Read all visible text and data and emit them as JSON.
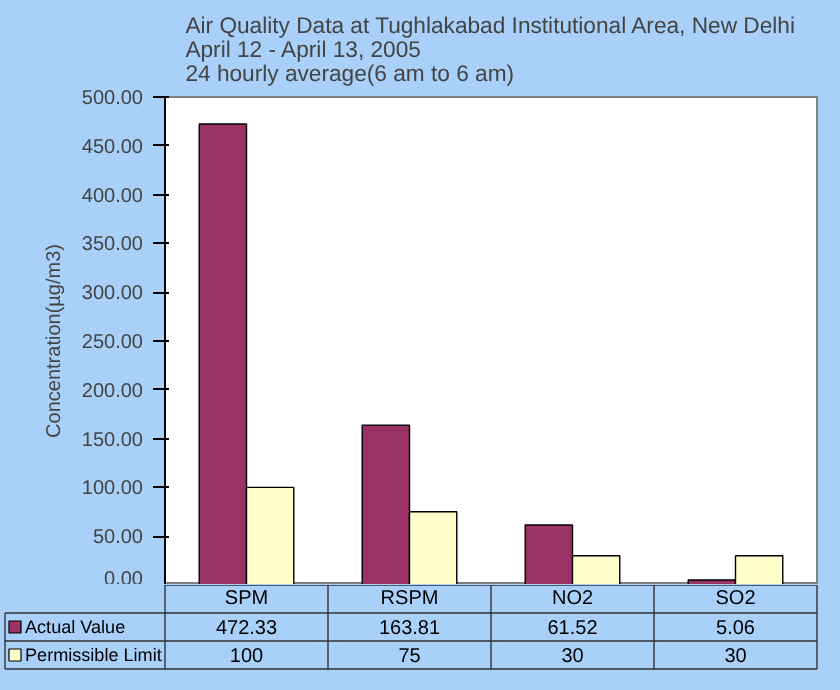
{
  "chart_data": {
    "type": "bar",
    "title": "Air Quality Data at Tughlakabad Institutional Area, New Delhi",
    "subtitle": "April 12   - April 13, 2005\n24 hourly average(6 am to 6 am)",
    "ylabel": "Concentration(µg/m3)",
    "categories": [
      "SPM",
      "RSPM",
      "NO2",
      "SO2"
    ],
    "series": [
      {
        "name": "Actual Value",
        "color": "#993366",
        "values": [
          472.33,
          163.81,
          61.52,
          5.06
        ]
      },
      {
        "name": "Permissible Limit",
        "color": "#ffffcc",
        "values": [
          100,
          75,
          30,
          30
        ]
      }
    ],
    "ylim": [
      0,
      500
    ],
    "yticks": [
      {
        "value": 0,
        "label": "0.00"
      },
      {
        "value": 50,
        "label": "50.00"
      },
      {
        "value": 100,
        "label": "100.00"
      },
      {
        "value": 150,
        "label": "150.00"
      },
      {
        "value": 200,
        "label": "200.00"
      },
      {
        "value": 250,
        "label": "250.00"
      },
      {
        "value": 300,
        "label": "300.00"
      },
      {
        "value": 350,
        "label": "350.00"
      },
      {
        "value": 400,
        "label": "400.00"
      },
      {
        "value": 450,
        "label": "450.00"
      },
      {
        "value": 500,
        "label": "500.00"
      }
    ],
    "grid": false,
    "legend": "bottom",
    "data_labels": true
  }
}
